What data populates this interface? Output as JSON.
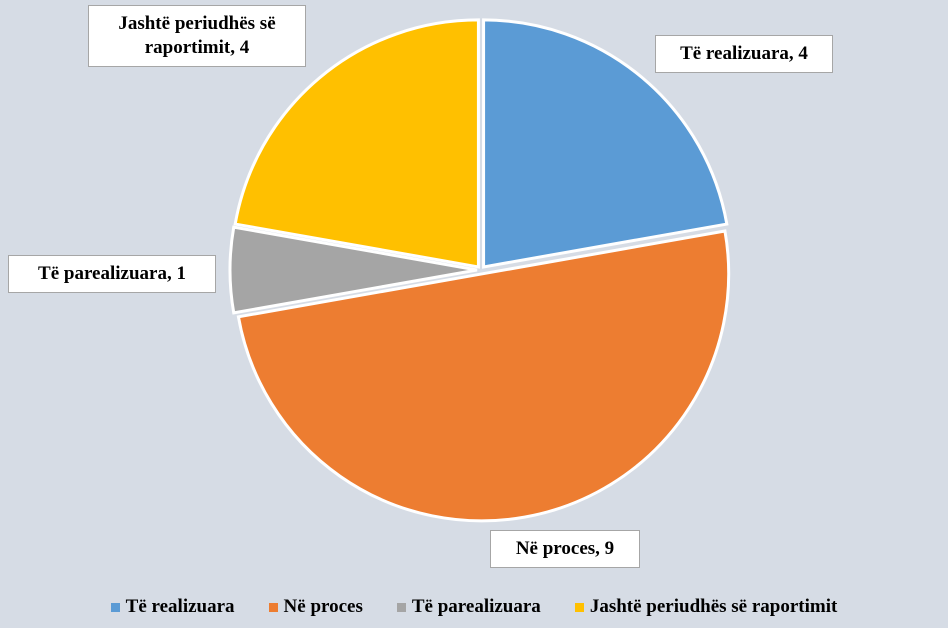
{
  "chart_data": {
    "type": "pie",
    "categories": [
      "Të realizuara",
      "Në proces",
      "Të parealizuara",
      "Jashtë periudhës së raportimit"
    ],
    "values": [
      4,
      9,
      1,
      4
    ],
    "value_labels": [
      "Të realizuara, 4",
      "Në proces, 9",
      "Të parealizuara, 1",
      "Jashtë periudhës së raportimit, 4"
    ],
    "colors": [
      "#5b9bd5",
      "#ed7d31",
      "#a5a5a5",
      "#ffc000"
    ],
    "legend": "bottom"
  }
}
